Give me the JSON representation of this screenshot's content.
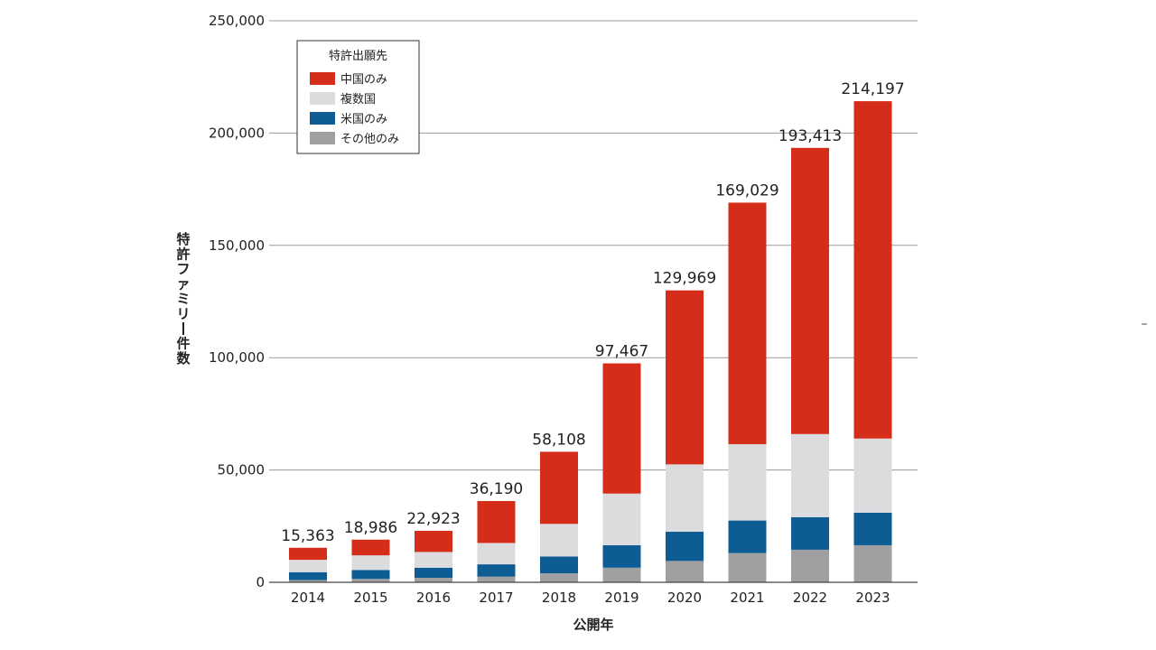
{
  "chart_data": {
    "type": "bar",
    "stacked": true,
    "title": "",
    "xlabel": "公開年",
    "ylabel": "特許ファミリー件数",
    "ylim": [
      0,
      250000
    ],
    "yticks": [
      0,
      50000,
      100000,
      150000,
      200000,
      250000
    ],
    "ytick_labels": [
      "0",
      "50,000",
      "100,000",
      "150,000",
      "200,000",
      "250,000"
    ],
    "grid": true,
    "legend": {
      "title": "特許出願先",
      "position": "top-left"
    },
    "categories": [
      "2014",
      "2015",
      "2016",
      "2017",
      "2018",
      "2019",
      "2020",
      "2021",
      "2022",
      "2023"
    ],
    "totals": [
      15363,
      18986,
      22923,
      36190,
      58108,
      97467,
      129969,
      169029,
      193413,
      214197
    ],
    "total_labels": [
      "15,363",
      "18,986",
      "22,923",
      "36,190",
      "58,108",
      "97,467",
      "129,969",
      "169,029",
      "193,413",
      "214,197"
    ],
    "series": [
      {
        "name": "その他のみ",
        "color": "#a0a0a2",
        "values": [
          1000,
          1500,
          2000,
          2500,
          4000,
          6500,
          9500,
          13000,
          14500,
          16500
        ]
      },
      {
        "name": "米国のみ",
        "color": "#0d5c94",
        "values": [
          3500,
          4000,
          4500,
          5500,
          7500,
          10000,
          13000,
          14500,
          14500,
          14500
        ]
      },
      {
        "name": "複数国",
        "color": "#dcdcdf",
        "values": [
          5500,
          6500,
          7000,
          9500,
          14500,
          23000,
          30000,
          34000,
          37000,
          33000
        ]
      },
      {
        "name": "中国のみ",
        "color": "#d42e1a",
        "values": [
          5363,
          6986,
          9423,
          18690,
          32108,
          57967,
          77469,
          107529,
          127413,
          150197
        ]
      }
    ],
    "legend_order": [
      "中国のみ",
      "複数国",
      "米国のみ",
      "その他のみ"
    ]
  },
  "stray_mark": "–"
}
